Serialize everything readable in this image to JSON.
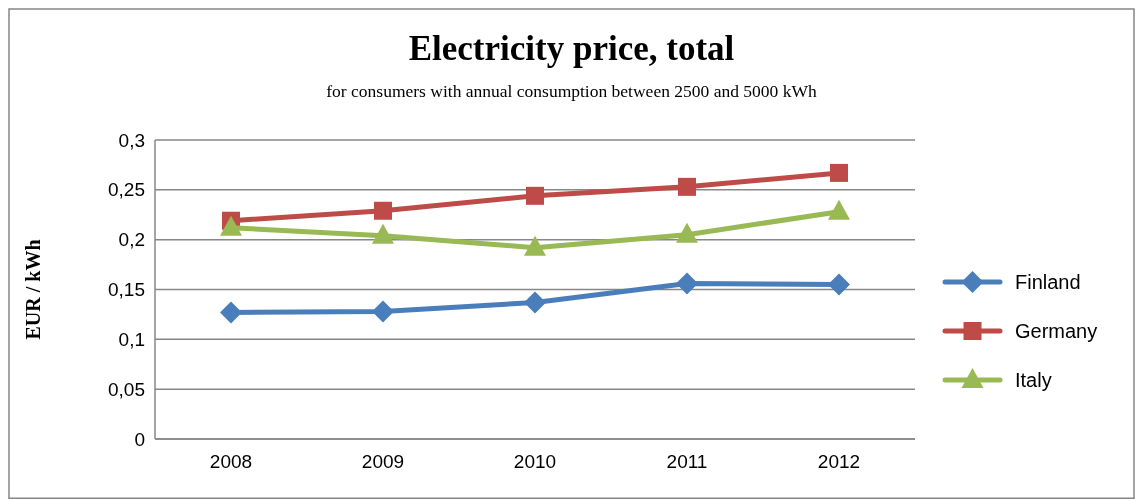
{
  "chart_data": {
    "type": "line",
    "title": "Electricity price, total",
    "subtitle": "for consumers with annual consumption between 2500 and 5000 kWh",
    "ylabel": "EUR / kWh",
    "categories": [
      "2008",
      "2009",
      "2010",
      "2011",
      "2012"
    ],
    "series": [
      {
        "name": "Finland",
        "color": "#4a7ebb",
        "marker": "diamond",
        "values": [
          0.127,
          0.128,
          0.137,
          0.156,
          0.155
        ]
      },
      {
        "name": "Germany",
        "color": "#be4b48",
        "marker": "square",
        "values": [
          0.219,
          0.229,
          0.244,
          0.253,
          0.267
        ]
      },
      {
        "name": "Italy",
        "color": "#98b954",
        "marker": "triangle",
        "values": [
          0.212,
          0.204,
          0.192,
          0.205,
          0.228
        ]
      }
    ],
    "ylim": [
      0,
      0.3
    ],
    "yticks": [
      0,
      {
        "value": 0.05,
        "label": "0,05"
      },
      {
        "value": 0.1,
        "label": "0,1"
      },
      {
        "value": 0.15,
        "label": "0,15"
      },
      {
        "value": 0.2,
        "label": "0,2"
      },
      {
        "value": 0.25,
        "label": "0,25"
      },
      {
        "value": 0.3,
        "label": "0,3"
      }
    ],
    "grid": "y",
    "legend": "right",
    "line_style": "solid"
  }
}
